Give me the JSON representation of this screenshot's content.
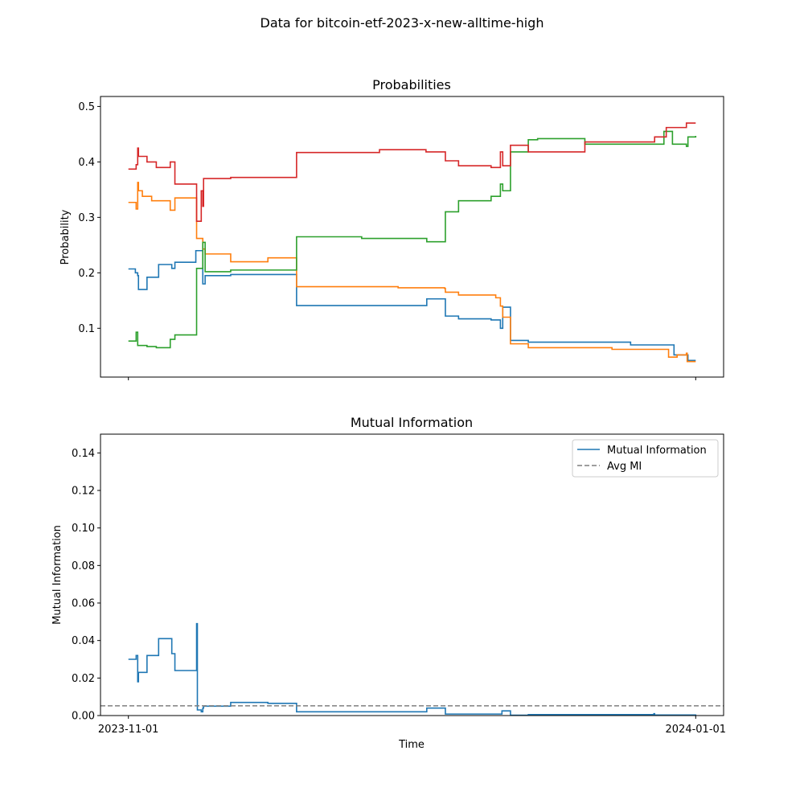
{
  "figure_title": "Data for bitcoin-etf-2023-x-new-alltime-high",
  "chart_data": [
    {
      "type": "line",
      "title": "Probabilities",
      "xlabel": "",
      "ylabel": "Probability",
      "x_scale": "time",
      "xlim": [
        "2023-10-29",
        "2024-01-04"
      ],
      "ylim": [
        0.012,
        0.518
      ],
      "y_ticks": [
        0.1,
        0.2,
        0.3,
        0.4,
        0.5
      ],
      "y_tick_labels": [
        "0.1",
        "0.2",
        "0.3",
        "0.4",
        "0.5"
      ],
      "x_ticks": [
        "2023-11-01",
        "2024-01-01"
      ],
      "x_tick_labels": [
        "",
        ""
      ],
      "legend": false,
      "step": true,
      "series": [
        {
          "color": "#1f77b4",
          "points": [
            [
              "2023-11-01",
              0.207
            ],
            [
              "2023-11-01T12:00",
              0.207
            ],
            [
              "2023-11-01T18:00",
              0.2
            ],
            [
              "2023-11-02",
              0.195
            ],
            [
              "2023-11-02T02:00",
              0.17
            ],
            [
              "2023-11-02T12:00",
              0.17
            ],
            [
              "2023-11-03",
              0.192
            ],
            [
              "2023-11-04",
              0.192
            ],
            [
              "2023-11-04T06:00",
              0.215
            ],
            [
              "2023-11-05T12:00",
              0.215
            ],
            [
              "2023-11-05T16:00",
              0.208
            ],
            [
              "2023-11-06",
              0.219
            ],
            [
              "2023-11-08",
              0.219
            ],
            [
              "2023-11-08T06:00",
              0.24
            ],
            [
              "2023-11-08T18:00",
              0.24
            ],
            [
              "2023-11-09",
              0.18
            ],
            [
              "2023-11-09T06:00",
              0.195
            ],
            [
              "2023-11-12",
              0.197
            ],
            [
              "2023-11-19",
              0.197
            ],
            [
              "2023-11-19T02:00",
              0.141
            ],
            [
              "2023-12-03",
              0.141
            ],
            [
              "2023-12-03T02:00",
              0.153
            ],
            [
              "2023-12-05",
              0.153
            ],
            [
              "2023-12-05T02:00",
              0.122
            ],
            [
              "2023-12-06T12:00",
              0.117
            ],
            [
              "2023-12-10",
              0.115
            ],
            [
              "2023-12-11",
              0.1
            ],
            [
              "2023-12-11T06:00",
              0.138
            ],
            [
              "2023-12-12",
              0.138
            ],
            [
              "2023-12-12T02:00",
              0.078
            ],
            [
              "2023-12-14",
              0.075
            ],
            [
              "2023-12-25",
              0.07
            ],
            [
              "2023-12-29T12:00",
              0.07
            ],
            [
              "2023-12-29T16:00",
              0.052
            ],
            [
              "2023-12-31",
              0.052
            ],
            [
              "2023-12-31T04:00",
              0.042
            ],
            [
              "2024-01-01",
              0.042
            ]
          ]
        },
        {
          "color": "#ff7f0e",
          "points": [
            [
              "2023-11-01",
              0.327
            ],
            [
              "2023-11-01T20:00",
              0.315
            ],
            [
              "2023-11-02",
              0.363
            ],
            [
              "2023-11-02T02:00",
              0.348
            ],
            [
              "2023-11-02T12:00",
              0.338
            ],
            [
              "2023-11-03T12:00",
              0.33
            ],
            [
              "2023-11-05",
              0.33
            ],
            [
              "2023-11-05T12:00",
              0.313
            ],
            [
              "2023-11-06",
              0.335
            ],
            [
              "2023-11-08T06:00",
              0.335
            ],
            [
              "2023-11-08T08:00",
              0.262
            ],
            [
              "2023-11-09",
              0.243
            ],
            [
              "2023-11-09T06:00",
              0.234
            ],
            [
              "2023-11-12",
              0.22
            ],
            [
              "2023-11-16",
              0.227
            ],
            [
              "2023-11-19",
              0.227
            ],
            [
              "2023-11-19T02:00",
              0.175
            ],
            [
              "2023-11-30",
              0.173
            ],
            [
              "2023-12-05",
              0.172
            ],
            [
              "2023-12-05T02:00",
              0.165
            ],
            [
              "2023-12-06T12:00",
              0.16
            ],
            [
              "2023-12-10T12:00",
              0.155
            ],
            [
              "2023-12-11",
              0.14
            ],
            [
              "2023-12-11T06:00",
              0.12
            ],
            [
              "2023-12-12",
              0.12
            ],
            [
              "2023-12-12T02:00",
              0.072
            ],
            [
              "2023-12-14",
              0.065
            ],
            [
              "2023-12-23",
              0.062
            ],
            [
              "2023-12-29",
              0.062
            ],
            [
              "2023-12-29T02:00",
              0.048
            ],
            [
              "2023-12-30",
              0.052
            ],
            [
              "2023-12-31",
              0.055
            ],
            [
              "2023-12-31T02:00",
              0.04
            ],
            [
              "2024-01-01",
              0.04
            ]
          ]
        },
        {
          "color": "#2ca02c",
          "points": [
            [
              "2023-11-01",
              0.077
            ],
            [
              "2023-11-01T20:00",
              0.093
            ],
            [
              "2023-11-02",
              0.069
            ],
            [
              "2023-11-03",
              0.067
            ],
            [
              "2023-11-04",
              0.065
            ],
            [
              "2023-11-05T12:00",
              0.08
            ],
            [
              "2023-11-06",
              0.088
            ],
            [
              "2023-11-08T06:00",
              0.088
            ],
            [
              "2023-11-08T08:00",
              0.208
            ],
            [
              "2023-11-08T20:00",
              0.208
            ],
            [
              "2023-11-09",
              0.255
            ],
            [
              "2023-11-09T06:00",
              0.202
            ],
            [
              "2023-11-12",
              0.205
            ],
            [
              "2023-11-19",
              0.205
            ],
            [
              "2023-11-19T02:00",
              0.265
            ],
            [
              "2023-11-26",
              0.265
            ],
            [
              "2023-11-26T02:00",
              0.262
            ],
            [
              "2023-12-03",
              0.262
            ],
            [
              "2023-12-03T02:00",
              0.256
            ],
            [
              "2023-12-05",
              0.256
            ],
            [
              "2023-12-05T02:00",
              0.31
            ],
            [
              "2023-12-06T12:00",
              0.33
            ],
            [
              "2023-12-10",
              0.338
            ],
            [
              "2023-12-11",
              0.36
            ],
            [
              "2023-12-11T06:00",
              0.348
            ],
            [
              "2023-12-12",
              0.348
            ],
            [
              "2023-12-12T02:00",
              0.418
            ],
            [
              "2023-12-14",
              0.44
            ],
            [
              "2023-12-15",
              0.442
            ],
            [
              "2023-12-20",
              0.442
            ],
            [
              "2023-12-20T02:00",
              0.432
            ],
            [
              "2023-12-28T12:00",
              0.432
            ],
            [
              "2023-12-28T14:00",
              0.455
            ],
            [
              "2023-12-29T12:00",
              0.432
            ],
            [
              "2023-12-31",
              0.428
            ],
            [
              "2023-12-31T04:00",
              0.445
            ],
            [
              "2024-01-01",
              0.447
            ]
          ]
        },
        {
          "color": "#d62728",
          "points": [
            [
              "2023-11-01",
              0.387
            ],
            [
              "2023-11-01T20:00",
              0.395
            ],
            [
              "2023-11-02",
              0.425
            ],
            [
              "2023-11-02T02:00",
              0.41
            ],
            [
              "2023-11-03",
              0.4
            ],
            [
              "2023-11-04",
              0.39
            ],
            [
              "2023-11-05T12:00",
              0.4
            ],
            [
              "2023-11-06",
              0.36
            ],
            [
              "2023-11-08T06:00",
              0.36
            ],
            [
              "2023-11-08T08:00",
              0.293
            ],
            [
              "2023-11-08T20:00",
              0.348
            ],
            [
              "2023-11-09",
              0.32
            ],
            [
              "2023-11-09T02:00",
              0.37
            ],
            [
              "2023-11-12",
              0.372
            ],
            [
              "2023-11-19",
              0.372
            ],
            [
              "2023-11-19T02:00",
              0.417
            ],
            [
              "2023-11-28",
              0.422
            ],
            [
              "2023-12-03",
              0.418
            ],
            [
              "2023-12-05",
              0.418
            ],
            [
              "2023-12-05T02:00",
              0.402
            ],
            [
              "2023-12-06T12:00",
              0.393
            ],
            [
              "2023-12-10",
              0.39
            ],
            [
              "2023-12-11",
              0.418
            ],
            [
              "2023-12-11T06:00",
              0.393
            ],
            [
              "2023-12-12",
              0.393
            ],
            [
              "2023-12-12T02:00",
              0.43
            ],
            [
              "2023-12-14",
              0.418
            ],
            [
              "2023-12-20",
              0.418
            ],
            [
              "2023-12-20T02:00",
              0.436
            ],
            [
              "2023-12-27T12:00",
              0.436
            ],
            [
              "2023-12-27T14:00",
              0.445
            ],
            [
              "2023-12-28T20:00",
              0.462
            ],
            [
              "2023-12-29T12:00",
              0.462
            ],
            [
              "2023-12-31",
              0.47
            ],
            [
              "2024-01-01",
              0.47
            ]
          ]
        }
      ]
    },
    {
      "type": "line",
      "title": "Mutual Information",
      "xlabel": "Time",
      "ylabel": "Mutual Information",
      "x_scale": "time",
      "xlim": [
        "2023-10-29",
        "2024-01-04"
      ],
      "ylim": [
        0,
        0.15
      ],
      "y_ticks": [
        0,
        0.02,
        0.04,
        0.06,
        0.08,
        0.1,
        0.12,
        0.14
      ],
      "y_tick_labels": [
        "0.00",
        "0.02",
        "0.04",
        "0.06",
        "0.08",
        "0.10",
        "0.12",
        "0.14"
      ],
      "x_ticks": [
        "2023-11-01",
        "2024-01-01"
      ],
      "x_tick_labels": [
        "2023-11-01",
        "2024-01-01"
      ],
      "legend": true,
      "legend_position": "upper right",
      "step": true,
      "series": [
        {
          "name": "Mutual Information",
          "color": "#1f77b4",
          "style": "solid",
          "points": [
            [
              "2023-11-01",
              0.03
            ],
            [
              "2023-11-01T20:00",
              0.032
            ],
            [
              "2023-11-02",
              0.018
            ],
            [
              "2023-11-02T02:00",
              0.023
            ],
            [
              "2023-11-02T12:00",
              0.023
            ],
            [
              "2023-11-03",
              0.032
            ],
            [
              "2023-11-04",
              0.032
            ],
            [
              "2023-11-04T06:00",
              0.041
            ],
            [
              "2023-11-05T12:00",
              0.041
            ],
            [
              "2023-11-05T16:00",
              0.033
            ],
            [
              "2023-11-06",
              0.024
            ],
            [
              "2023-11-08",
              0.024
            ],
            [
              "2023-11-08T08:00",
              0.049
            ],
            [
              "2023-11-08T10:00",
              0.003
            ],
            [
              "2023-11-08T20:00",
              0.002
            ],
            [
              "2023-11-09",
              0.004
            ],
            [
              "2023-11-09T02:00",
              0.005
            ],
            [
              "2023-11-12",
              0.007
            ],
            [
              "2023-11-16",
              0.0065
            ],
            [
              "2023-11-19",
              0.0065
            ],
            [
              "2023-11-19T02:00",
              0.002
            ],
            [
              "2023-12-03",
              0.002
            ],
            [
              "2023-12-03T02:00",
              0.004
            ],
            [
              "2023-12-05",
              0.004
            ],
            [
              "2023-12-05T02:00",
              0.0008
            ],
            [
              "2023-12-11",
              0.0008
            ],
            [
              "2023-12-11T04:00",
              0.0025
            ],
            [
              "2023-12-12",
              0.0025
            ],
            [
              "2023-12-12T02:00",
              0.0002
            ],
            [
              "2023-12-14",
              0.0005
            ],
            [
              "2023-12-27T12:00",
              0.001
            ],
            [
              "2023-12-27T14:00",
              0.0003
            ],
            [
              "2024-01-01",
              0.0002
            ]
          ]
        },
        {
          "name": "Avg MI",
          "color": "#7f7f7f",
          "style": "dashed",
          "points": [
            [
              "2023-10-29",
              0.0052
            ],
            [
              "2024-01-04",
              0.0052
            ]
          ]
        }
      ]
    }
  ]
}
